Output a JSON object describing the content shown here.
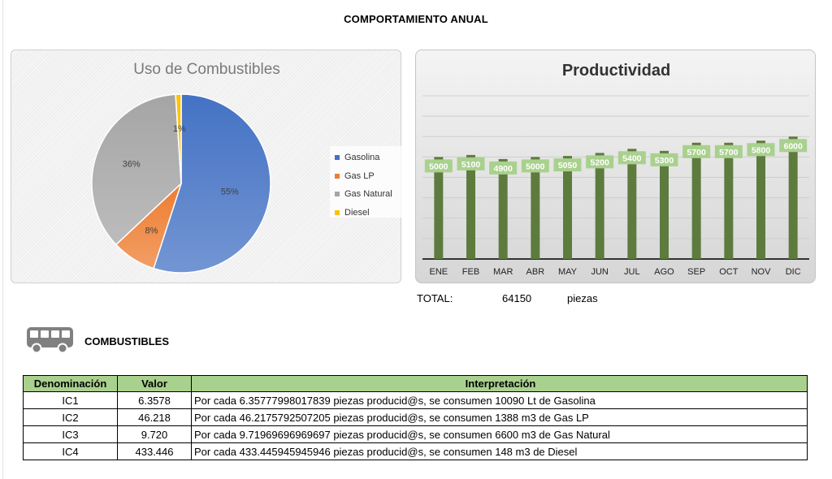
{
  "page_title": "COMPORTAMIENTO ANUAL",
  "chart_data": [
    {
      "type": "pie",
      "title": "Uso de Combustibles",
      "categories": [
        "Gasolina",
        "Gas LP",
        "Gas Natural",
        "Diesel"
      ],
      "values": [
        55,
        8,
        36,
        1
      ],
      "value_labels": [
        "55%",
        "8%",
        "36%",
        "1%"
      ],
      "colors": [
        "#4472c4",
        "#ed7d31",
        "#a5a5a5",
        "#ffc000"
      ],
      "legend_position": "right"
    },
    {
      "type": "bar",
      "title": "Productividad",
      "categories": [
        "ENE",
        "FEB",
        "MAR",
        "ABR",
        "MAY",
        "JUN",
        "JUL",
        "AGO",
        "SEP",
        "OCT",
        "NOV",
        "DIC"
      ],
      "values": [
        5000,
        5100,
        4900,
        5000,
        5050,
        5200,
        5400,
        5300,
        5700,
        5700,
        5800,
        6000
      ],
      "ylim": [
        0,
        8000
      ],
      "grid": true,
      "bar_color": "#5e7b3e",
      "label_color": "#a9d18e"
    }
  ],
  "total": {
    "label": "TOTAL:",
    "value": "64150",
    "unit": "piezas"
  },
  "section": {
    "icon": "bus-icon",
    "title": "COMBUSTIBLES"
  },
  "table": {
    "headers": [
      "Denominación",
      "Valor",
      "Interpretación"
    ],
    "rows": [
      {
        "den": "IC1",
        "val": "6.3578",
        "int": "Por cada 6.35777998017839 piezas producid@s, se consumen 10090 Lt  de Gasolina"
      },
      {
        "den": "IC2",
        "val": "46.218",
        "int": "Por cada 46.2175792507205 piezas producid@s, se consumen 1388 m3  de Gas LP"
      },
      {
        "den": "IC3",
        "val": "9.720",
        "int": "Por cada 9.71969696969697 piezas producid@s, se consumen 6600 m3  de Gas Natural"
      },
      {
        "den": "IC4",
        "val": "433.446",
        "int": "Por cada 433.445945945946 piezas producid@s, se consumen 148 m3  de Diesel"
      }
    ]
  }
}
